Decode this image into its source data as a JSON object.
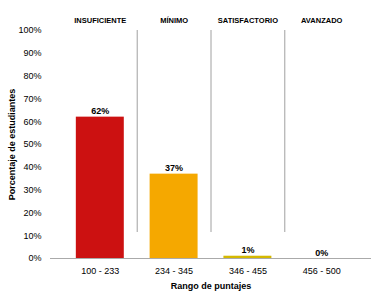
{
  "chart_data": {
    "type": "bar",
    "categories": [
      "100 - 233",
      "234 - 345",
      "346 - 455",
      "456 - 500"
    ],
    "values": [
      62,
      37,
      1,
      0
    ],
    "value_labels": [
      "62%",
      "37%",
      "1%",
      "0%"
    ],
    "data_labels": true,
    "colors": [
      "#cc1111",
      "#f5a800",
      "#d4b800",
      "#d4b800"
    ],
    "xlabel": "Rango de puntajes",
    "ylabel": "Porcentaje de estudiantes",
    "ylim": [
      0,
      100
    ],
    "yticks": [
      {
        "value": 0,
        "label": "0%"
      },
      {
        "value": 10,
        "label": "10%"
      },
      {
        "value": 20,
        "label": "20%"
      },
      {
        "value": 30,
        "label": "30%"
      },
      {
        "value": 40,
        "label": "40%"
      },
      {
        "value": 50,
        "label": "50%"
      },
      {
        "value": 60,
        "label": "60%"
      },
      {
        "value": 70,
        "label": "70%"
      },
      {
        "value": 80,
        "label": "80%"
      },
      {
        "value": 90,
        "label": "90%"
      },
      {
        "value": 100,
        "label": "100%"
      }
    ],
    "annotations": [
      {
        "category": "100 - 233",
        "text": "INSUFICIENTE"
      },
      {
        "category": "234 - 345",
        "text": "MÍNIMO"
      },
      {
        "category": "346 - 455",
        "text": "SATISFACTORIO"
      },
      {
        "category": "456 - 500",
        "text": "AVANZADO"
      }
    ],
    "grid": false
  }
}
